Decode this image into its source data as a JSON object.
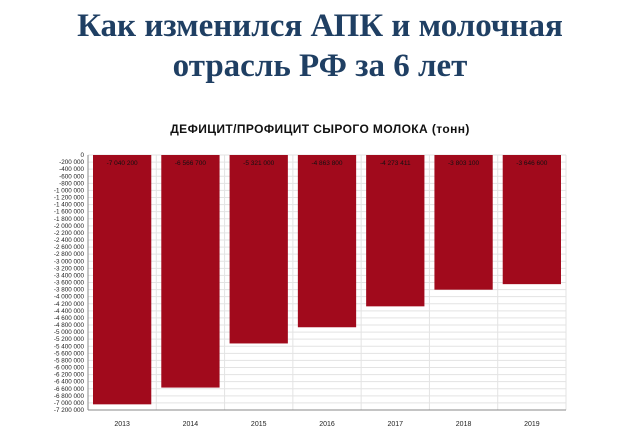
{
  "slide": {
    "title_line1": "Как изменился АПК и молочная",
    "title_line2": "отрасль РФ за 6 лет"
  },
  "chart_data": {
    "type": "bar",
    "title": "ДЕФИЦИТ/ПРОФИЦИТ СЫРОГО МОЛОКА (тонн)",
    "xlabel": "",
    "ylabel": "",
    "categories": [
      "2013",
      "2014",
      "2015",
      "2016",
      "2017",
      "2018",
      "2019"
    ],
    "values": [
      -7040200,
      -6566700,
      -5321000,
      -4863800,
      -4273411,
      -3803100,
      -3646600
    ],
    "value_labels": [
      "-7 040 200",
      "-6 566 700",
      "-5 321 000",
      "-4 863 800",
      "-4 273 411",
      "-3 803 100",
      "-3 646 600"
    ],
    "ylim": [
      -7200000,
      0
    ],
    "ytick_step": 200000,
    "grid": true,
    "bar_color": "#a10a1c",
    "grid_color": "#e3e3e3",
    "title_color": "#1f3f63"
  }
}
